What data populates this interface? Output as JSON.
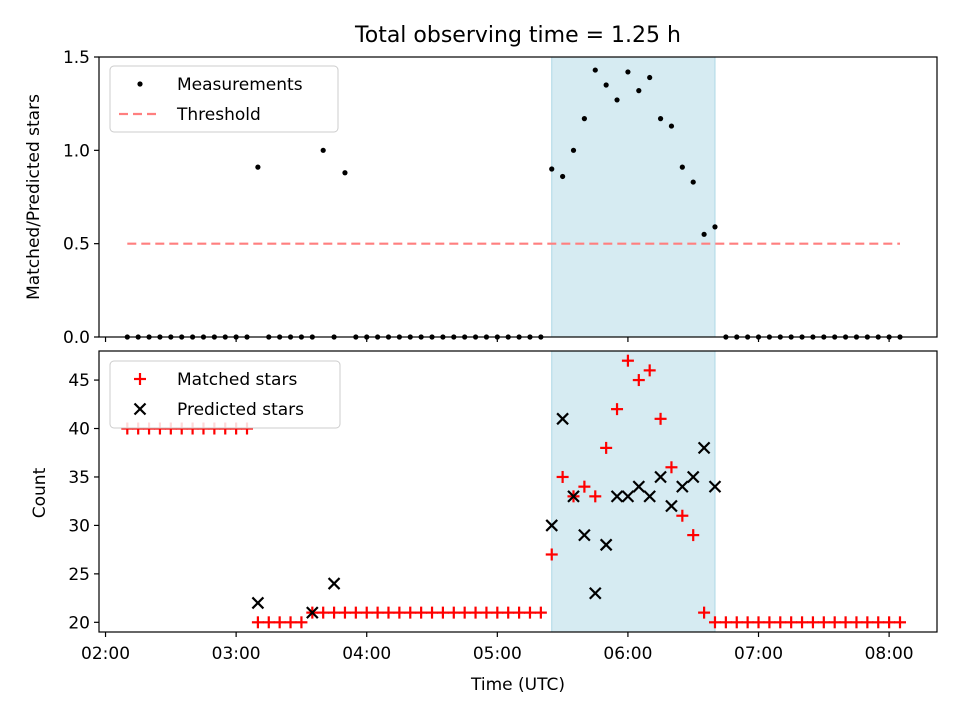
{
  "title": "Total observing time = 1.25 h",
  "colors": {
    "shade": "#add8e6",
    "matched": "#ff0000",
    "predicted": "#000000",
    "threshold": "#ff7f7f",
    "measurement": "#000000"
  },
  "chart_data": [
    {
      "type": "scatter",
      "ylabel": "Matched/Predicted stars",
      "ylim": [
        0,
        1.5
      ],
      "yticks": [
        "0.0",
        "0.5",
        "1.0",
        "1.5"
      ],
      "legend_position": "top-left",
      "legend": [
        "Measurements",
        "Threshold"
      ],
      "threshold": {
        "name": "Threshold",
        "value": 0.5,
        "x_start": "02:10",
        "x_end": "08:05"
      },
      "shaded_region": [
        "05:25",
        "06:40"
      ],
      "series": [
        {
          "name": "Measurements",
          "x": [
            "02:10",
            "02:15",
            "02:20",
            "02:25",
            "02:30",
            "02:35",
            "02:40",
            "02:45",
            "02:50",
            "02:55",
            "03:00",
            "03:05",
            "03:10",
            "03:15",
            "03:20",
            "03:25",
            "03:30",
            "03:35",
            "03:40",
            "03:45",
            "03:50",
            "03:55",
            "04:00",
            "04:05",
            "04:10",
            "04:15",
            "04:20",
            "04:25",
            "04:30",
            "04:35",
            "04:40",
            "04:45",
            "04:50",
            "04:55",
            "05:00",
            "05:05",
            "05:10",
            "05:15",
            "05:20",
            "05:25",
            "05:30",
            "05:35",
            "05:40",
            "05:45",
            "05:50",
            "05:55",
            "06:00",
            "06:05",
            "06:10",
            "06:15",
            "06:20",
            "06:25",
            "06:30",
            "06:35",
            "06:40",
            "06:45",
            "06:50",
            "06:55",
            "07:00",
            "07:05",
            "07:10",
            "07:15",
            "07:20",
            "07:25",
            "07:30",
            "07:35",
            "07:40",
            "07:45",
            "07:50",
            "07:55",
            "08:00",
            "08:05"
          ],
          "values": [
            0,
            0,
            0,
            0,
            0,
            0,
            0,
            0,
            0,
            0,
            0,
            0,
            0.91,
            0,
            0,
            0,
            0,
            0,
            1.0,
            0,
            0.88,
            0,
            0,
            0,
            0,
            0,
            0,
            0,
            0,
            0,
            0,
            0,
            0,
            0,
            0,
            0,
            0,
            0,
            0,
            0.9,
            0.86,
            1.0,
            1.17,
            1.43,
            1.35,
            1.27,
            1.42,
            1.32,
            1.39,
            1.17,
            1.13,
            0.91,
            0.83,
            0.55,
            0.59,
            0,
            0,
            0,
            0,
            0,
            0,
            0,
            0,
            0,
            0,
            0,
            0,
            0,
            0,
            0,
            0,
            0
          ]
        }
      ]
    },
    {
      "type": "scatter",
      "xlabel": "Time (UTC)",
      "ylabel": "Count",
      "ylim": [
        19,
        48
      ],
      "yticks": [
        "20",
        "25",
        "30",
        "35",
        "40",
        "45"
      ],
      "xticks": [
        "02:00",
        "03:00",
        "04:00",
        "05:00",
        "06:00",
        "07:00",
        "08:00"
      ],
      "legend_position": "top-left",
      "legend": [
        "Matched stars",
        "Predicted stars"
      ],
      "shaded_region": [
        "05:25",
        "06:40"
      ],
      "series": [
        {
          "name": "Matched stars",
          "x": [
            "02:10",
            "02:15",
            "02:20",
            "02:25",
            "02:30",
            "02:35",
            "02:40",
            "02:45",
            "02:50",
            "02:55",
            "03:00",
            "03:05",
            "03:10",
            "03:15",
            "03:20",
            "03:25",
            "03:30",
            "03:35",
            "03:40",
            "03:45",
            "03:50",
            "03:55",
            "04:00",
            "04:05",
            "04:10",
            "04:15",
            "04:20",
            "04:25",
            "04:30",
            "04:35",
            "04:40",
            "04:45",
            "04:50",
            "04:55",
            "05:00",
            "05:05",
            "05:10",
            "05:15",
            "05:20",
            "05:25",
            "05:30",
            "05:35",
            "05:40",
            "05:45",
            "05:50",
            "05:55",
            "06:00",
            "06:05",
            "06:10",
            "06:15",
            "06:20",
            "06:25",
            "06:30",
            "06:35",
            "06:40",
            "06:45",
            "06:50",
            "06:55",
            "07:00",
            "07:05",
            "07:10",
            "07:15",
            "07:20",
            "07:25",
            "07:30",
            "07:35",
            "07:40",
            "07:45",
            "07:50",
            "07:55",
            "08:00",
            "08:05"
          ],
          "values": [
            40,
            40,
            40,
            40,
            40,
            40,
            40,
            40,
            40,
            40,
            40,
            40,
            20,
            20,
            20,
            20,
            20,
            21,
            21,
            21,
            21,
            21,
            21,
            21,
            21,
            21,
            21,
            21,
            21,
            21,
            21,
            21,
            21,
            21,
            21,
            21,
            21,
            21,
            21,
            27,
            35,
            33,
            34,
            33,
            38,
            42,
            47,
            45,
            46,
            41,
            36,
            31,
            29,
            21,
            20,
            20,
            20,
            20,
            20,
            20,
            20,
            20,
            20,
            20,
            20,
            20,
            20,
            20,
            20,
            20,
            20,
            20
          ]
        },
        {
          "name": "Predicted stars",
          "x": [
            "03:10",
            "03:35",
            "03:45",
            "05:25",
            "05:30",
            "05:35",
            "05:40",
            "05:45",
            "05:50",
            "05:55",
            "06:00",
            "06:05",
            "06:10",
            "06:15",
            "06:20",
            "06:25",
            "06:30",
            "06:35",
            "06:40"
          ],
          "values": [
            22,
            21,
            24,
            30,
            41,
            33,
            29,
            23,
            28,
            33,
            33,
            34,
            33,
            35,
            32,
            34,
            35,
            38,
            34
          ]
        }
      ]
    }
  ]
}
